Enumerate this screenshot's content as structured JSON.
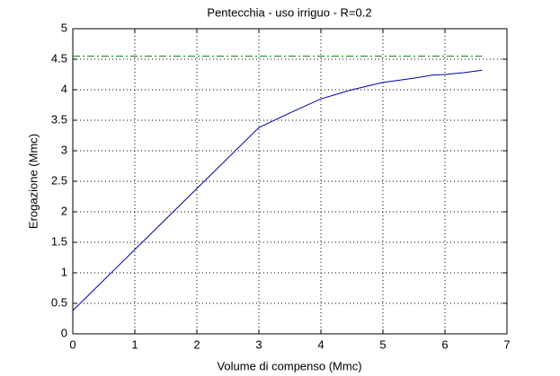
{
  "chart_data": {
    "type": "line",
    "title": "Pentecchia  -  uso irriguo  -   R=0.2",
    "xlabel": "Volume di compenso (Mmc)",
    "ylabel": "Erogazione (Mmc)",
    "xlim": [
      0,
      7
    ],
    "xticks": [
      0,
      1,
      2,
      3,
      4,
      5,
      6,
      7
    ],
    "ylim": [
      0,
      5
    ],
    "yticks": [
      0,
      0.5,
      1,
      1.5,
      2,
      2.5,
      3,
      3.5,
      4,
      4.5,
      5
    ],
    "grid": true,
    "series": [
      {
        "color": "#0000aa",
        "style": "solid",
        "x": [
          0,
          1,
          2,
          3,
          3.5,
          4,
          4.5,
          5,
          5.5,
          5.8,
          6,
          6.3,
          6.6
        ],
        "values": [
          0.38,
          1.38,
          2.38,
          3.38,
          3.62,
          3.85,
          4.0,
          4.12,
          4.19,
          4.24,
          4.25,
          4.28,
          4.32
        ]
      },
      {
        "color": "#008000",
        "style": "dashdot",
        "x": [
          0,
          6.6
        ],
        "values": [
          4.55,
          4.55
        ]
      }
    ]
  }
}
